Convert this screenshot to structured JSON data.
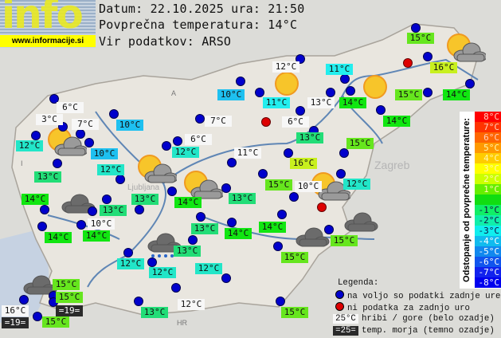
{
  "logo": {
    "word": "info",
    "url": "www.informacije.si"
  },
  "header": {
    "date_line": "Datum: 22.10.2025 ura: 21:50",
    "avg_line": "Povprečna temperatura: 14°C",
    "source_line": "Vir podatkov: ARSO"
  },
  "colors": {
    "t10": "#1ec0f0",
    "t11": "#22eeee",
    "t12": "#22e6c8",
    "t13": "#22dd77",
    "t14": "#11e611",
    "t15": "#66e61e",
    "t16": "#c8f01e",
    "station_ok": "#0000cc",
    "station_missing": "#dd0000"
  },
  "stations": [
    {
      "temp": "3°C",
      "kind": "mountain"
    },
    {
      "temp": "6°C",
      "kind": "mountain"
    },
    {
      "temp": "7°C",
      "kind": "mountain"
    },
    {
      "temp": "12°C",
      "kind": "t12"
    },
    {
      "temp": "10°C",
      "kind": "t10"
    },
    {
      "temp": "13°C",
      "kind": "t13"
    },
    {
      "temp": "12°C",
      "kind": "t12"
    },
    {
      "temp": "10°C",
      "kind": "t10"
    },
    {
      "temp": "10°C",
      "kind": "t10"
    },
    {
      "temp": "7°C",
      "kind": "mountain"
    },
    {
      "temp": "6°C",
      "kind": "mountain"
    },
    {
      "temp": "12°C",
      "kind": "t12"
    },
    {
      "temp": "12°C",
      "kind": "mountain"
    },
    {
      "temp": "11°C",
      "kind": "t11"
    },
    {
      "temp": "11°C",
      "kind": "t11"
    },
    {
      "temp": "13°C",
      "kind": "mountain"
    },
    {
      "temp": "14°C",
      "kind": "t14"
    },
    {
      "temp": "6°C",
      "kind": "mountain"
    },
    {
      "temp": "15°C",
      "kind": "t15"
    },
    {
      "temp": "16°C",
      "kind": "t16"
    },
    {
      "temp": "15°C",
      "kind": "t15"
    },
    {
      "temp": "14°C",
      "kind": "t14"
    },
    {
      "temp": "14°C",
      "kind": "t14"
    },
    {
      "temp": "13°C",
      "kind": "t13"
    },
    {
      "temp": "15°C",
      "kind": "t15"
    },
    {
      "temp": "11°C",
      "kind": "mountain"
    },
    {
      "temp": "16°C",
      "kind": "t16"
    },
    {
      "temp": "15°C",
      "kind": "t15"
    },
    {
      "temp": "10°C",
      "kind": "mountain"
    },
    {
      "temp": "12°C",
      "kind": "t12"
    },
    {
      "temp": "14°C",
      "kind": "t14"
    },
    {
      "temp": "13°C",
      "kind": "t13"
    },
    {
      "temp": "13°C",
      "kind": "t13"
    },
    {
      "temp": "14°C",
      "kind": "t14"
    },
    {
      "temp": "13°C",
      "kind": "t13"
    },
    {
      "temp": "10°C",
      "kind": "mountain"
    },
    {
      "temp": "14°C",
      "kind": "t14"
    },
    {
      "temp": "14°C",
      "kind": "t14"
    },
    {
      "temp": "13°C",
      "kind": "t13"
    },
    {
      "temp": "14°C",
      "kind": "t14"
    },
    {
      "temp": "14°C",
      "kind": "t14"
    },
    {
      "temp": "15°C",
      "kind": "t15"
    },
    {
      "temp": "13°C",
      "kind": "t13"
    },
    {
      "temp": "15°C",
      "kind": "t15"
    },
    {
      "temp": "12°C",
      "kind": "t12"
    },
    {
      "temp": "12°C",
      "kind": "t12"
    },
    {
      "temp": "12°C",
      "kind": "t12"
    },
    {
      "temp": "15°C",
      "kind": "t15"
    },
    {
      "temp": "15°C",
      "kind": "t15"
    },
    {
      "temp": "=19=",
      "kind": "sea"
    },
    {
      "temp": "16°C",
      "kind": "mountain"
    },
    {
      "temp": "=19=",
      "kind": "sea"
    },
    {
      "temp": "15°C",
      "kind": "t15"
    },
    {
      "temp": "13°C",
      "kind": "t13"
    },
    {
      "temp": "12°C",
      "kind": "mountain"
    },
    {
      "temp": "15°C",
      "kind": "t15"
    }
  ],
  "weather_icons": [
    "sun-cloud",
    "sun-cloud",
    "sun-cloud",
    "sun",
    "sun",
    "sun-cloud",
    "sun-cloud",
    "cloud",
    "cloud",
    "cloud",
    "rain-cloud",
    "cloud"
  ],
  "colorbar": {
    "title": "Odstopanje od povprečne temperature:",
    "steps": [
      {
        "label": "8°C",
        "color": "#ff0000"
      },
      {
        "label": "7°C",
        "color": "#ff3300"
      },
      {
        "label": "6°C",
        "color": "#ff6600"
      },
      {
        "label": "5°C",
        "color": "#ff9900"
      },
      {
        "label": "4°C",
        "color": "#ffcc00"
      },
      {
        "label": "3°C",
        "color": "#ffff00"
      },
      {
        "label": "2°C",
        "color": "#ccff00"
      },
      {
        "label": "1°C",
        "color": "#66ee00"
      },
      {
        "label": "",
        "color": "#11dd11"
      },
      {
        "label": "-1°C",
        "color": "#11ee66"
      },
      {
        "label": "-2°C",
        "color": "#11eeaa"
      },
      {
        "label": "-3°C",
        "color": "#11eeee"
      },
      {
        "label": "-4°C",
        "color": "#11bbee"
      },
      {
        "label": "-5°C",
        "color": "#1188ee"
      },
      {
        "label": "-6°C",
        "color": "#1155ee"
      },
      {
        "label": "-7°C",
        "color": "#1122ee"
      },
      {
        "label": "-8°C",
        "color": "#0000ee"
      }
    ]
  },
  "legend": {
    "title": "Legenda:",
    "available": "na voljo so podatki zadnje ure",
    "missing": "ni podatka za zadnjo uro",
    "mountain_sample": "25°C",
    "mountain_text": "hribi / gore (belo ozadje)",
    "sea_sample": "=25=",
    "sea_text": "temp. morja (temno ozadje)"
  },
  "map_labels": {
    "austria": "A",
    "italy": "I",
    "croatia": "HR",
    "ljubljana": "Ljubljana",
    "zagreb": "Zagreb"
  }
}
